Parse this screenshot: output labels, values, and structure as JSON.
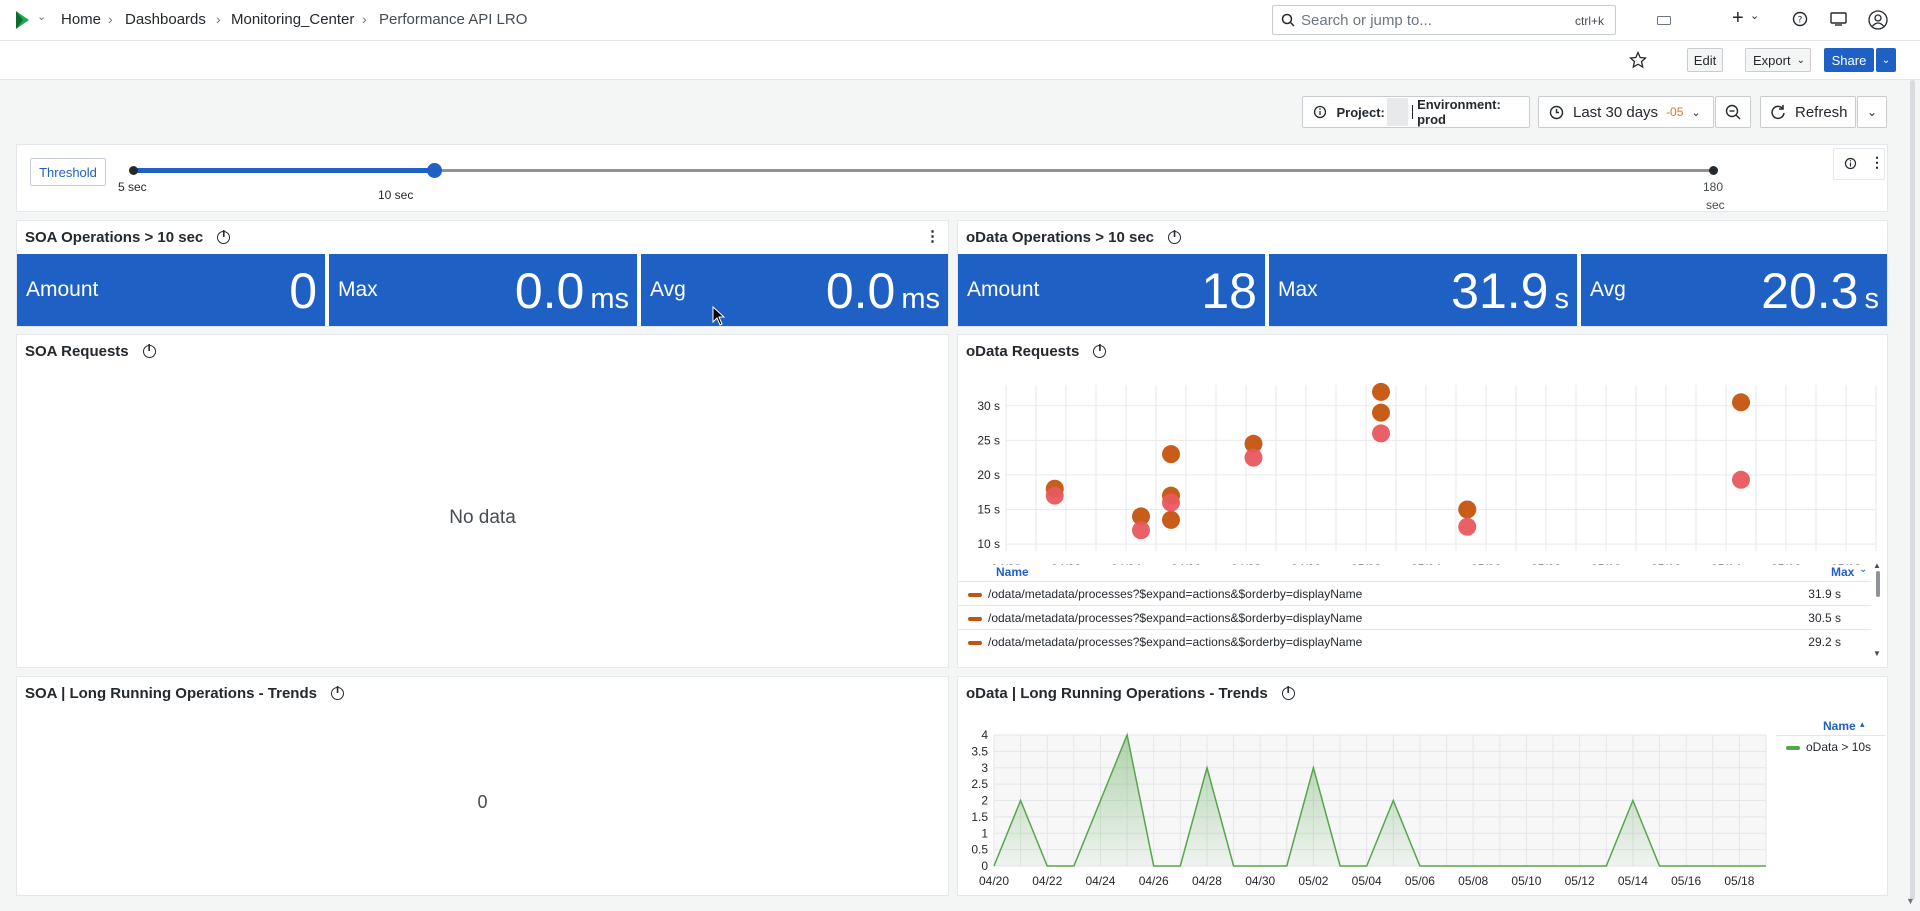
{
  "breadcrumb": [
    "Home",
    "Dashboards",
    "Monitoring_Center",
    "Performance API LRO"
  ],
  "search": {
    "placeholder": "Search or jump to...",
    "shortcut": "ctrl+k"
  },
  "toolbar": {
    "edit": "Edit",
    "export": "Export",
    "share": "Share"
  },
  "filters": {
    "project_label": "Project:",
    "environment": "Environment: prod",
    "time_range": "Last 30 days",
    "tz": "-05",
    "refresh": "Refresh"
  },
  "threshold": {
    "label": "Threshold",
    "min": "5 sec",
    "current": "10 sec",
    "max_line1": "180",
    "max_line2": "sec",
    "value_fraction": 0.0286
  },
  "soa_ops": {
    "title": "SOA Operations > 10 sec",
    "amount_label": "Amount",
    "amount": "0",
    "max_label": "Max",
    "max": "0.0",
    "max_unit": "ms",
    "avg_label": "Avg",
    "avg": "0.0",
    "avg_unit": "ms"
  },
  "odata_ops": {
    "title": "oData Operations > 10 sec",
    "amount_label": "Amount",
    "amount": "18",
    "max_label": "Max",
    "max": "31.9",
    "max_unit": "s",
    "avg_label": "Avg",
    "avg": "20.3",
    "avg_unit": "s"
  },
  "soa_requests": {
    "title": "SOA Requests",
    "empty": "No data"
  },
  "odata_requests": {
    "title": "oData Requests",
    "legend_headers": {
      "name": "Name",
      "max": "Max"
    },
    "legend_rows": [
      {
        "name": "/odata/metadata/processes?$expand=actions&$orderby=displayName",
        "max": "31.9 s"
      },
      {
        "name": "/odata/metadata/processes?$expand=actions&$orderby=displayName",
        "max": "30.5 s"
      },
      {
        "name": "/odata/metadata/processes?$expand=actions&$orderby=displayName",
        "max": "29.2 s"
      }
    ]
  },
  "soa_trends": {
    "title": "SOA | Long Running Operations - Trends",
    "value": "0"
  },
  "odata_trends": {
    "title": "oData | Long Running Operations - Trends",
    "legend_header": "Name",
    "series_name": "oData > 10s"
  },
  "colors": {
    "stat_bg": "#1f60c4",
    "dark_orange": "#c4540d",
    "coral": "#e8585e",
    "green": "#56a64b",
    "brand": "#1f60c4"
  },
  "chart_data": [
    {
      "type": "scatter",
      "title": "oData Requests",
      "x_ticks": [
        "04/20",
        "04/22",
        "04/24",
        "04/26",
        "04/28",
        "04/30",
        "05/02",
        "05/04",
        "05/06",
        "05/08",
        "05/10",
        "05/12",
        "05/14",
        "05/16",
        "05/18"
      ],
      "y_ticks": [
        "10 s",
        "15 s",
        "20 s",
        "25 s",
        "30 s"
      ],
      "ylim": [
        9,
        33
      ],
      "xlim": [
        "04/20",
        "05/19"
      ],
      "series": [
        {
          "color": "dark_orange",
          "points": [
            {
              "x": "04/21 15:00",
              "y": 18
            },
            {
              "x": "04/24 12:00",
              "y": 14
            },
            {
              "x": "04/25 12:00",
              "y": 23
            },
            {
              "x": "04/25 12:00",
              "y": 17
            },
            {
              "x": "04/25 12:00",
              "y": 13.5
            },
            {
              "x": "04/28 06:00",
              "y": 24.5
            },
            {
              "x": "05/02 12:00",
              "y": 32
            },
            {
              "x": "05/02 12:00",
              "y": 29
            },
            {
              "x": "05/05 09:00",
              "y": 15
            },
            {
              "x": "05/14 12:00",
              "y": 30.5
            }
          ]
        },
        {
          "color": "coral",
          "points": [
            {
              "x": "04/21 15:00",
              "y": 17
            },
            {
              "x": "04/24 12:00",
              "y": 12
            },
            {
              "x": "04/25 12:00",
              "y": 16
            },
            {
              "x": "04/28 06:00",
              "y": 22.5
            },
            {
              "x": "05/02 12:00",
              "y": 26
            },
            {
              "x": "05/05 09:00",
              "y": 12.5
            },
            {
              "x": "05/14 12:00",
              "y": 19.3
            }
          ]
        }
      ]
    },
    {
      "type": "area",
      "title": "oData | Long Running Operations - Trends",
      "x_ticks": [
        "04/20",
        "04/22",
        "04/24",
        "04/26",
        "04/28",
        "04/30",
        "05/02",
        "05/04",
        "05/06",
        "05/08",
        "05/10",
        "05/12",
        "05/14",
        "05/16",
        "05/18"
      ],
      "y_ticks": [
        "0",
        "0.5",
        "1",
        "1.5",
        "2",
        "2.5",
        "3",
        "3.5",
        "4"
      ],
      "ylim": [
        0,
        4
      ],
      "series": [
        {
          "name": "oData > 10s",
          "color": "green",
          "points": [
            {
              "x": "04/20",
              "y": 0
            },
            {
              "x": "04/21",
              "y": 2
            },
            {
              "x": "04/22",
              "y": 0
            },
            {
              "x": "04/23",
              "y": 0
            },
            {
              "x": "04/25",
              "y": 4
            },
            {
              "x": "04/26",
              "y": 0
            },
            {
              "x": "04/27",
              "y": 0
            },
            {
              "x": "04/28",
              "y": 3
            },
            {
              "x": "04/29",
              "y": 0
            },
            {
              "x": "05/01",
              "y": 0
            },
            {
              "x": "05/02",
              "y": 3
            },
            {
              "x": "05/03",
              "y": 0
            },
            {
              "x": "05/04",
              "y": 0
            },
            {
              "x": "05/05",
              "y": 2
            },
            {
              "x": "05/06",
              "y": 0
            },
            {
              "x": "05/13",
              "y": 0
            },
            {
              "x": "05/14",
              "y": 2
            },
            {
              "x": "05/15",
              "y": 0
            },
            {
              "x": "05/19",
              "y": 0
            }
          ]
        }
      ]
    }
  ]
}
